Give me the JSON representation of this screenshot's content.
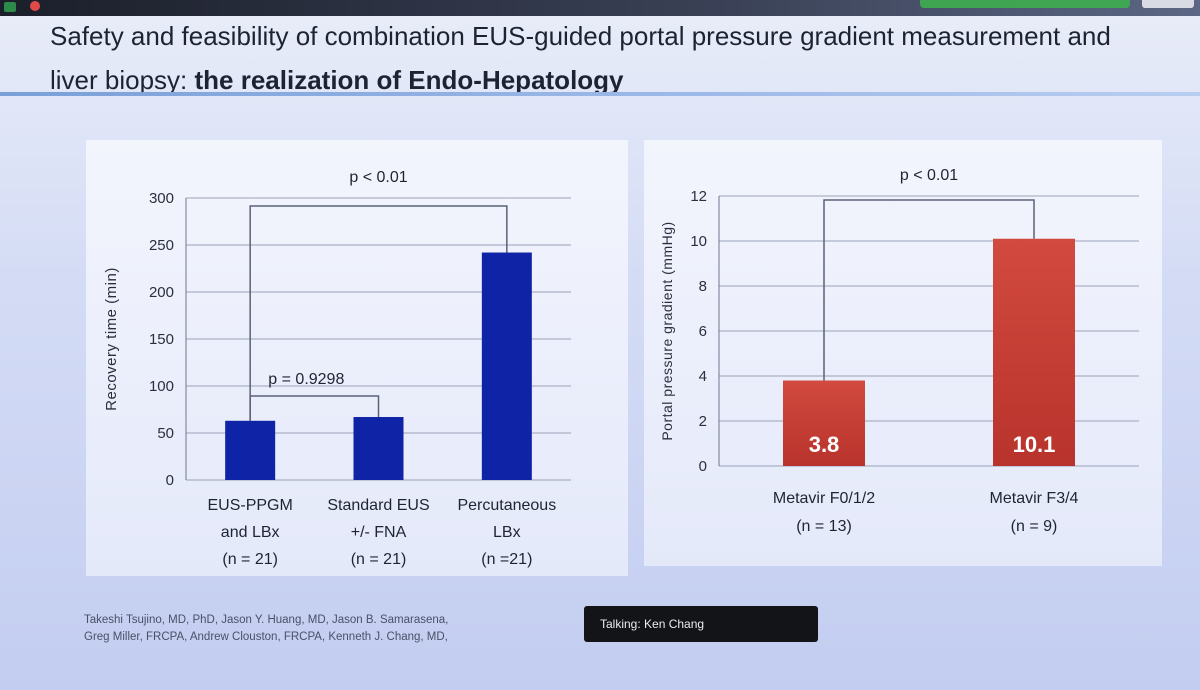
{
  "slide": {
    "title_plain": "Safety and feasibility of combination EUS-guided portal pressure gradient measurement and liver biopsy: ",
    "title_bold": "the realization of Endo-Hepatology",
    "credits_line1": "Takeshi Tsujino, MD, PhD, Jason Y. Huang, MD, Jason B. Samarasena,",
    "credits_line2": "Greg Miller, FRCPA, Andrew Clouston, FRCPA, Kenneth J. Chang, MD,"
  },
  "talking_indicator": "Talking: Ken Chang",
  "colors": {
    "left_bar": "#0f23a6",
    "right_bar_top": "#d24a3f",
    "right_bar_bottom": "#b8332c"
  },
  "chart_data": [
    {
      "type": "bar",
      "categories": [
        [
          "EUS-PPGM",
          "and LBx",
          "(n = 21)"
        ],
        [
          "Standard EUS",
          "+/- FNA",
          "(n = 21)"
        ],
        [
          "Percutaneous",
          "LBx",
          "(n =21)"
        ]
      ],
      "values": [
        63,
        67,
        242
      ],
      "ylabel": "Recovery time (min)",
      "ylim": [
        0,
        300
      ],
      "yticks": [
        0,
        50,
        100,
        150,
        200,
        250,
        300
      ],
      "grid": true,
      "annotations": [
        {
          "text": "p < 0.01",
          "from": 0,
          "to": 2
        },
        {
          "text": "p = 0.9298",
          "from": 0,
          "to": 1
        }
      ]
    },
    {
      "type": "bar",
      "categories": [
        [
          "Metavir F0/1/2",
          "(n = 13)"
        ],
        [
          "Metavir F3/4",
          "(n = 9)"
        ]
      ],
      "values": [
        3.8,
        10.1
      ],
      "data_labels": [
        "3.8",
        "10.1"
      ],
      "ylabel": "Portal pressure gradient (mmHg)",
      "ylim": [
        0,
        12
      ],
      "yticks": [
        0,
        2,
        4,
        6,
        8,
        10,
        12
      ],
      "grid": true,
      "annotations": [
        {
          "text": "p < 0.01",
          "from": 0,
          "to": 1
        }
      ]
    }
  ]
}
